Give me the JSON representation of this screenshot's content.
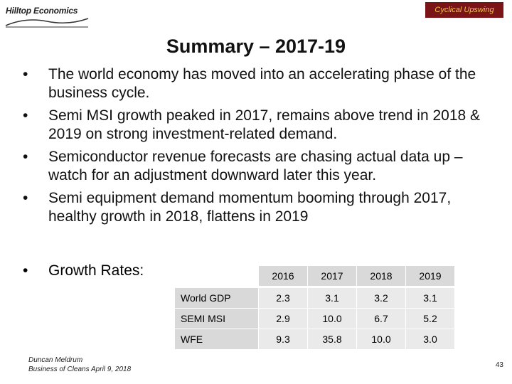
{
  "header": {
    "logo_text": "Hilltop Economics",
    "badge": "Cyclical Upswing"
  },
  "title": "Summary – 2017-19",
  "bullets": [
    "The world economy has moved into an accelerating phase of the business cycle.",
    "Semi MSI growth peaked in 2017, remains above trend in 2018 & 2019 on strong investment-related demand.",
    "Semiconductor revenue forecasts are chasing actual data up – watch for an adjustment downward later this year.",
    "Semi equipment demand momentum booming through 2017, healthy growth in 2018, flattens in 2019"
  ],
  "growth_label": "Growth Rates:",
  "table": {
    "years": [
      "2016",
      "2017",
      "2018",
      "2019"
    ],
    "rows": [
      {
        "label": "World GDP",
        "values": [
          "2.3",
          "3.1",
          "3.2",
          "3.1"
        ]
      },
      {
        "label": "SEMI MSI",
        "values": [
          "2.9",
          "10.0",
          "6.7",
          "5.2"
        ]
      },
      {
        "label": "WFE",
        "values": [
          "9.3",
          "35.8",
          "10.0",
          "3.0"
        ]
      }
    ]
  },
  "footer": {
    "line1": "Duncan Meldrum",
    "line2": "Business of Cleans April 9, 2018",
    "page": "43"
  },
  "colors": {
    "badge_bg": "#7a1416",
    "badge_text": "#f2c94c",
    "header_cell": "#d9d9d9",
    "body_cell": "#eaeaea"
  }
}
